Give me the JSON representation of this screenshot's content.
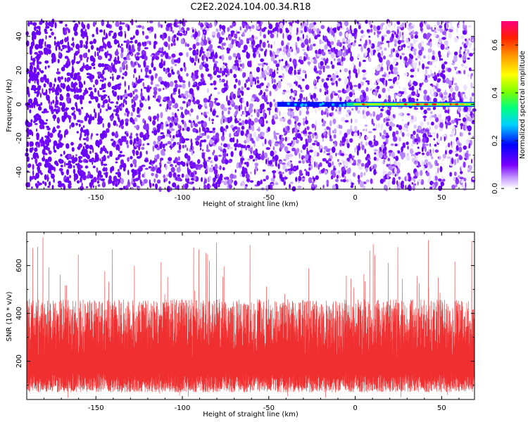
{
  "title": "C2E2.2024.104.00.34.R18",
  "chart_data": [
    {
      "type": "heatmap",
      "xlabel": "Height of straight line (km)",
      "ylabel": "Frequency (Hz)",
      "xlim": [
        -190,
        69
      ],
      "ylim": [
        -50,
        49
      ],
      "xticks": [
        -150,
        -100,
        -50,
        0,
        50
      ],
      "yticks": [
        -40,
        -20,
        0,
        20,
        40
      ],
      "colorbar": {
        "label": "Normalized spectral amplitude",
        "range": [
          0,
          0.7
        ],
        "ticks": [
          0.0,
          0.2,
          0.4,
          0.6
        ]
      },
      "feature": {
        "description_note": "",
        "ridge_frequency": 0,
        "ridge_x_start": -45,
        "ridge_x_end": 69,
        "ridge_peak_amplitude": 0.68
      }
    },
    {
      "type": "line",
      "xlabel": "Height of straight line (km)",
      "ylabel": "SNR (10 * v/v)",
      "xlim": [
        -190,
        69
      ],
      "ylim": [
        40,
        740
      ],
      "xticks": [
        -150,
        -100,
        -50,
        0,
        50
      ],
      "yticks": [
        200,
        400,
        600
      ],
      "series_color": "#f03030",
      "baseline_low": 70,
      "baseline_mean": 210,
      "typical_high": 420,
      "max_spike": 720
    }
  ]
}
